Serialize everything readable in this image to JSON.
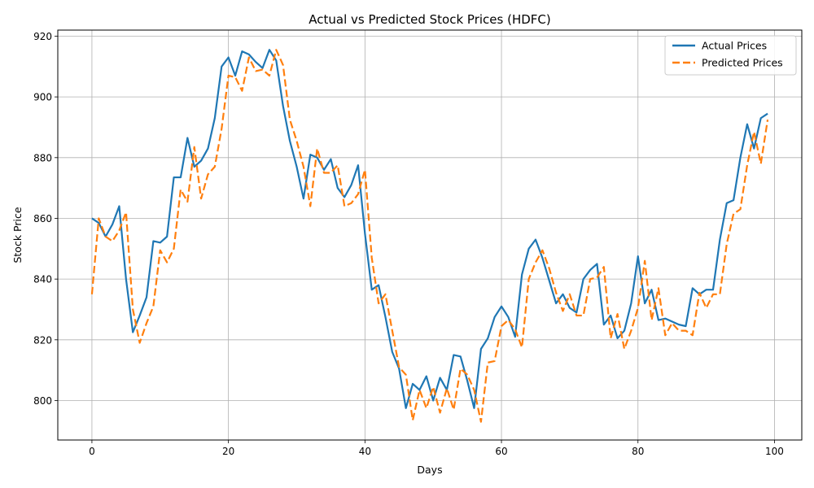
{
  "chart_data": {
    "type": "line",
    "title": "Actual vs Predicted Stock Prices (HDFC)",
    "xlabel": "Days",
    "ylabel": "Stock Price",
    "xlim": [
      -5,
      104
    ],
    "ylim": [
      787,
      922
    ],
    "x_ticks": [
      0,
      20,
      40,
      60,
      80,
      100
    ],
    "y_ticks": [
      800,
      820,
      840,
      860,
      880,
      900,
      920
    ],
    "grid": true,
    "legend_position": "top-right",
    "series": [
      {
        "name": "Actual Prices",
        "color": "#1f77b4",
        "style": "solid",
        "values": [
          860,
          858.5,
          854,
          858,
          864,
          840,
          822.5,
          828,
          834,
          852.5,
          852,
          854,
          873.5,
          873.5,
          886.5,
          877,
          879,
          883,
          893,
          910,
          913,
          907,
          915,
          914,
          911.5,
          909.5,
          915.5,
          912,
          897,
          885.5,
          877,
          866.5,
          881,
          880,
          876,
          879.5,
          870,
          867,
          871,
          877.5,
          855,
          836.5,
          838,
          827.5,
          816,
          810.5,
          797.5,
          805.5,
          803.5,
          808,
          800,
          807.5,
          803.5,
          815,
          814.5,
          806.5,
          797.5,
          817,
          820.5,
          827.5,
          831,
          827.5,
          821,
          841.5,
          850,
          853,
          847,
          839.5,
          832,
          835,
          830.5,
          829,
          840,
          843,
          845,
          825,
          828,
          820.5,
          823,
          832,
          847.5,
          832,
          836.5,
          826.5,
          827,
          826,
          825,
          824.5,
          837,
          835,
          836.5,
          836.5,
          853,
          865,
          866,
          880,
          891,
          883,
          893,
          894.5
        ]
      },
      {
        "name": "Predicted Prices",
        "color": "#ff7f0e",
        "style": "dashed",
        "values": [
          835,
          860,
          854,
          852.5,
          856,
          862,
          830,
          819,
          825.5,
          831,
          849.5,
          845.5,
          850,
          869.5,
          865.5,
          883.5,
          866.5,
          874.5,
          877,
          889.5,
          907,
          906.5,
          902,
          913,
          908.5,
          909,
          907,
          915.5,
          910.5,
          892.5,
          885.5,
          877,
          864,
          883,
          875,
          875,
          877.5,
          864,
          865,
          868,
          876,
          847,
          832,
          835,
          823,
          811,
          808.5,
          793.5,
          803.5,
          797.5,
          804.5,
          796,
          804,
          797,
          810.5,
          808.5,
          803.5,
          793,
          812.5,
          813,
          824.5,
          826.5,
          823.5,
          817.5,
          840,
          845.5,
          849.5,
          843.5,
          835.5,
          829.5,
          835,
          828,
          828,
          840,
          840.5,
          844,
          820.5,
          828.5,
          817,
          823,
          830.5,
          846,
          826.5,
          837,
          821.5,
          825.5,
          823,
          823,
          821.5,
          835.5,
          830.5,
          835,
          835,
          851.5,
          861.5,
          863,
          877.5,
          888.5,
          878,
          892.5
        ]
      }
    ]
  }
}
